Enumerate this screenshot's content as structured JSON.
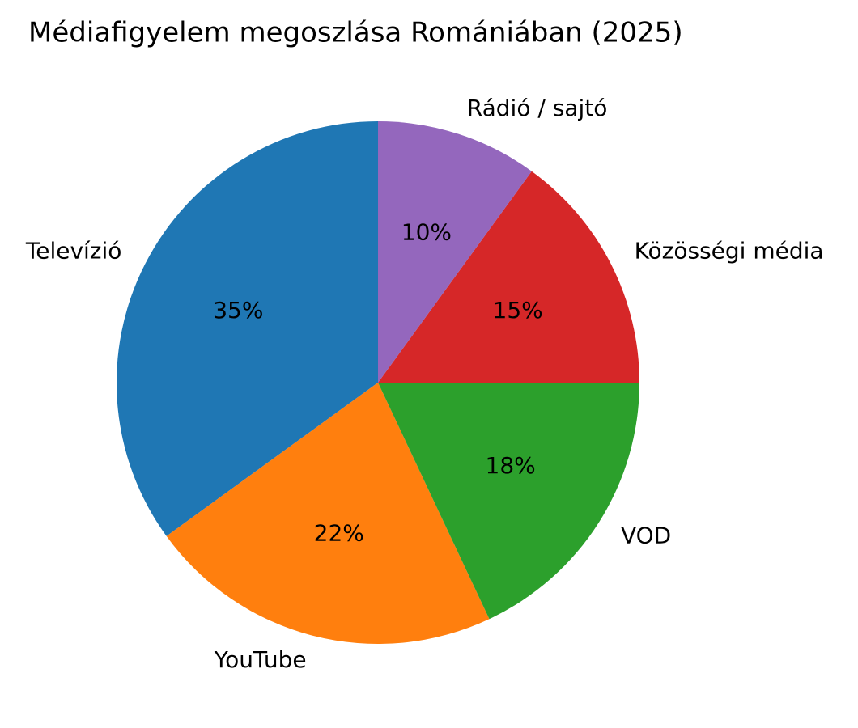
{
  "chart_data": {
    "type": "pie",
    "title": "Médiafigyelem megoszlása Romániában (2025)",
    "categories": [
      "Televízió",
      "YouTube",
      "VOD",
      "Közösségi média",
      "Rádió / sajtó"
    ],
    "values": [
      35,
      22,
      18,
      15,
      10
    ],
    "value_labels": [
      "35%",
      "22%",
      "18%",
      "15%",
      "10%"
    ],
    "colors": [
      "#1f77b4",
      "#ff7f0e",
      "#2ca02c",
      "#d62728",
      "#9467bd"
    ]
  }
}
